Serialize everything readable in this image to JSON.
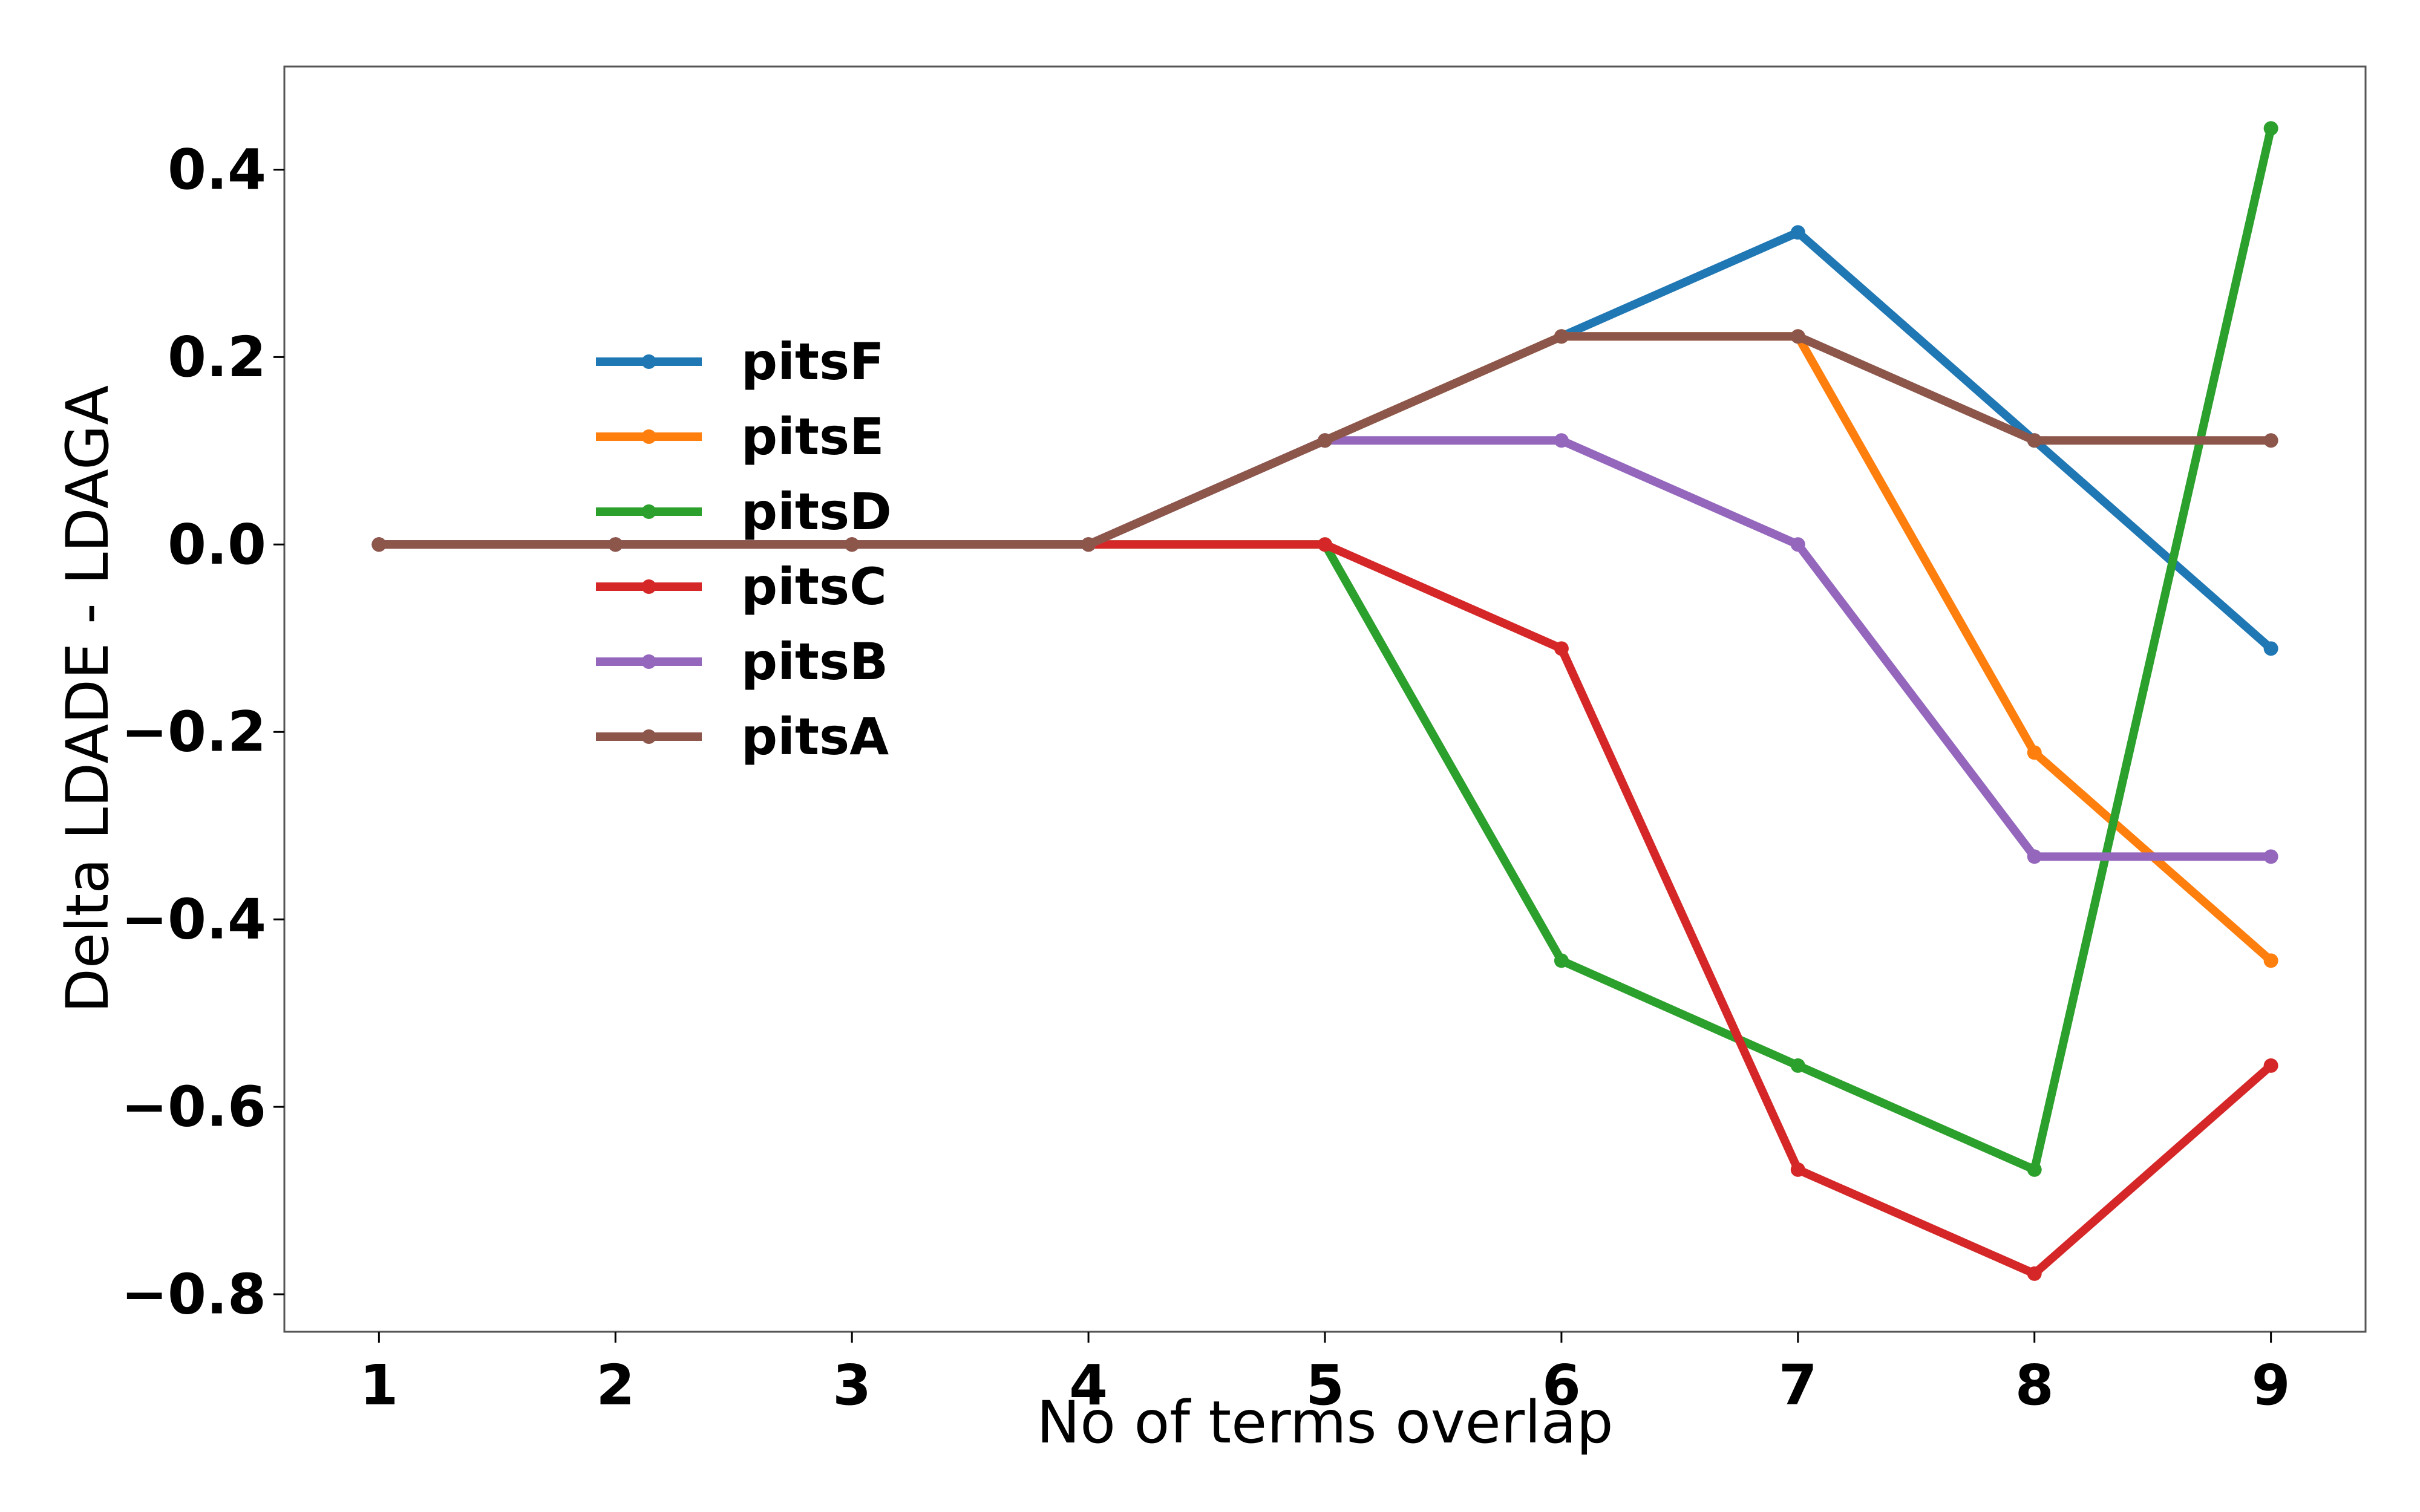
{
  "chart_data": {
    "type": "line",
    "title": "",
    "xlabel": "No of terms overlap",
    "ylabel": "Delta LDADE - LDAGA",
    "x": [
      1,
      2,
      3,
      4,
      5,
      6,
      7,
      8,
      9
    ],
    "x_tick_labels": [
      "1",
      "2",
      "3",
      "4",
      "5",
      "6",
      "7",
      "8",
      "9"
    ],
    "xlim": [
      0.6,
      9.4
    ],
    "ylim": [
      -0.84,
      0.51
    ],
    "y_ticks": [
      -0.8,
      -0.6,
      -0.4,
      -0.2,
      0.0,
      0.2,
      0.4
    ],
    "y_tick_labels": [
      "−0.8",
      "−0.6",
      "−0.4",
      "−0.2",
      "0.0",
      "0.2",
      "0.4"
    ],
    "grid": false,
    "legend_position": "center-left",
    "series": [
      {
        "name": "pitsF",
        "color": "#1f77b4",
        "values": [
          0,
          0,
          0,
          0,
          0.111,
          0.222,
          0.333,
          0.111,
          -0.111
        ]
      },
      {
        "name": "pitsE",
        "color": "#ff7f0e",
        "values": [
          0,
          0,
          0,
          0,
          0.111,
          0.222,
          0.222,
          -0.222,
          -0.444
        ]
      },
      {
        "name": "pitsD",
        "color": "#2ca02c",
        "values": [
          0,
          0,
          0,
          0,
          0,
          -0.444,
          -0.556,
          -0.667,
          0.444
        ]
      },
      {
        "name": "pitsC",
        "color": "#d62728",
        "values": [
          0,
          0,
          0,
          0,
          0,
          -0.111,
          -0.667,
          -0.778,
          -0.556
        ]
      },
      {
        "name": "pitsB",
        "color": "#9467bd",
        "values": [
          0,
          0,
          0,
          0,
          0.111,
          0.111,
          0,
          -0.333,
          -0.333
        ]
      },
      {
        "name": "pitsA",
        "color": "#8c564b",
        "values": [
          0,
          0,
          0,
          0,
          0.111,
          0.222,
          0.222,
          0.111,
          0.111
        ]
      }
    ]
  }
}
